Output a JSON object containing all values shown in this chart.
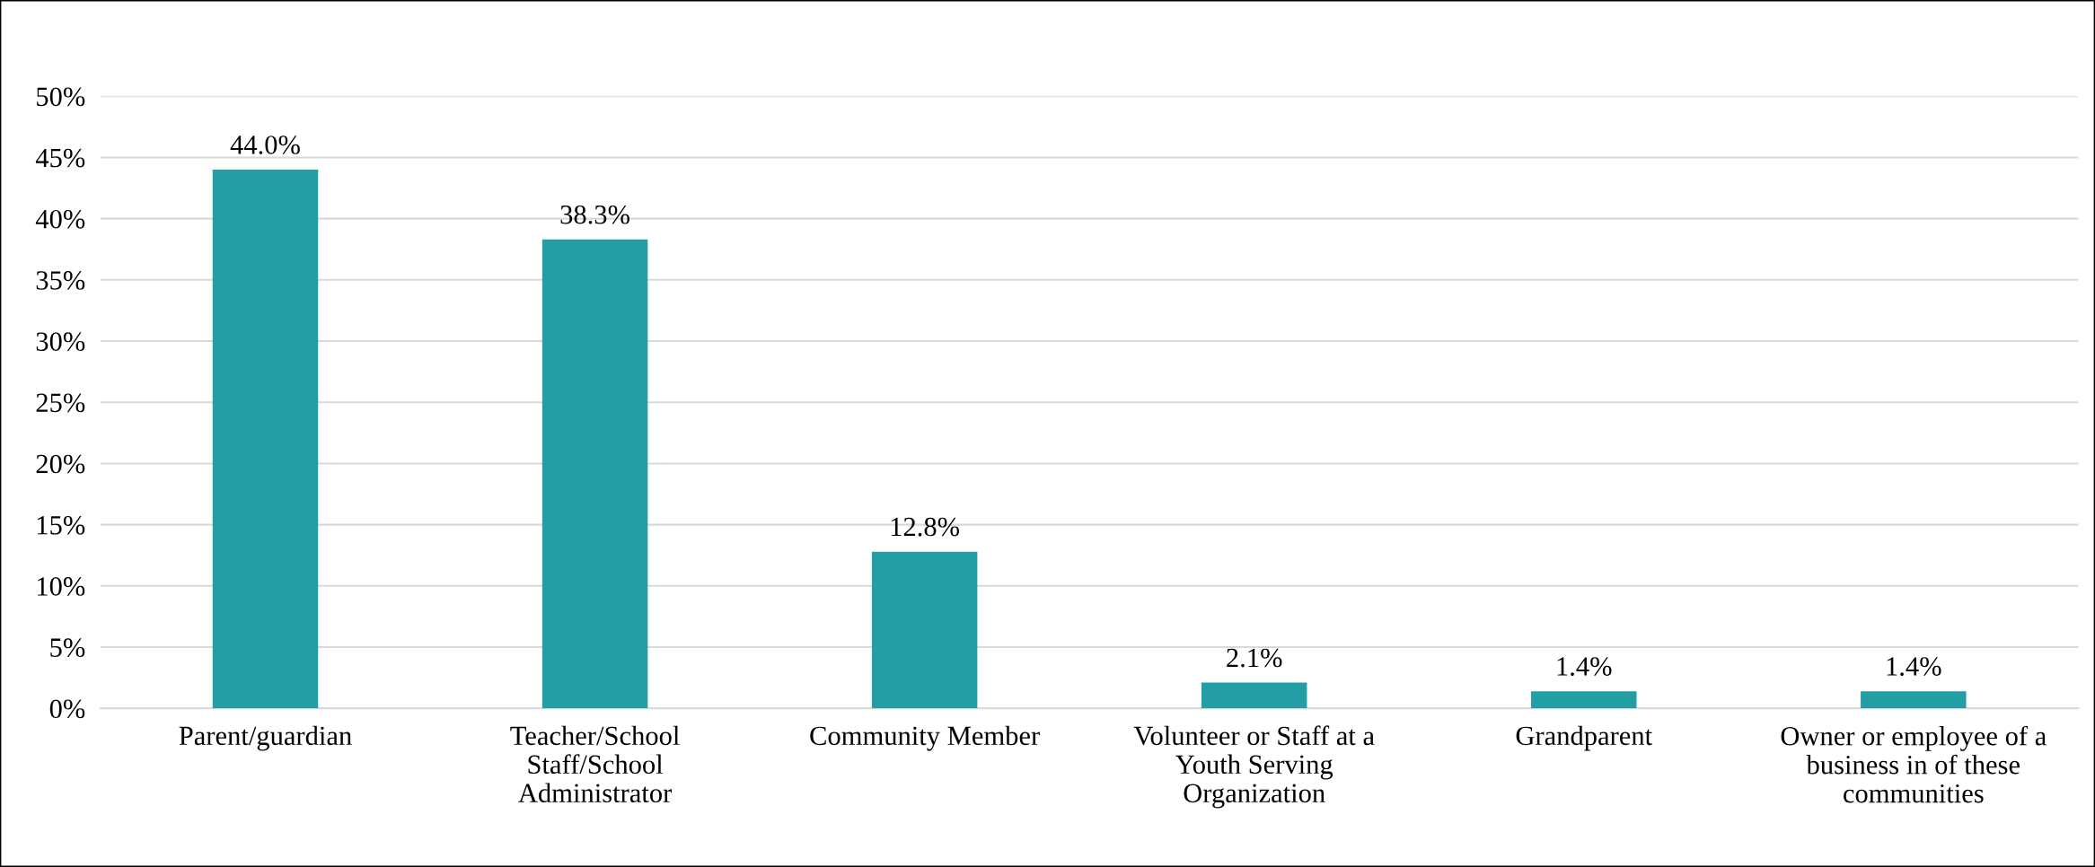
{
  "chart_data": {
    "type": "bar",
    "categories": [
      "Parent/guardian",
      "Teacher/School\nStaff/School\nAdministrator",
      "Community Member",
      "Volunteer or Staff at a\nYouth Serving\nOrganization",
      "Grandparent",
      "Owner or employee of a\nbusiness in of these\ncommunities"
    ],
    "values": [
      44.0,
      38.3,
      12.8,
      2.1,
      1.4,
      1.4
    ],
    "value_labels": [
      "44.0%",
      "38.3%",
      "12.8%",
      "2.1%",
      "1.4%",
      "1.4%"
    ],
    "color": "#239ea5",
    "ylim": [
      0,
      50
    ],
    "yticks": [
      {
        "value": 0,
        "label": "0%"
      },
      {
        "value": 5,
        "label": "5%"
      },
      {
        "value": 10,
        "label": "10%"
      },
      {
        "value": 15,
        "label": "15%"
      },
      {
        "value": 20,
        "label": "20%"
      },
      {
        "value": 25,
        "label": "25%"
      },
      {
        "value": 30,
        "label": "30%"
      },
      {
        "value": 35,
        "label": "35%"
      },
      {
        "value": 40,
        "label": "40%"
      },
      {
        "value": 45,
        "label": "45%"
      },
      {
        "value": 50,
        "label": "50%"
      }
    ],
    "grid": "y",
    "legend": false
  }
}
